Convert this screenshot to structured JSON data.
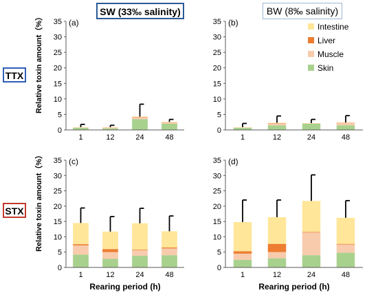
{
  "headers": {
    "sw": "SW (33‰ salinity)",
    "bw": "BW (8‰ salinity)",
    "ttx": "TTX",
    "stx": "STX"
  },
  "colors": {
    "Intestine": "#ffe699",
    "Liver": "#ed7d31",
    "Muscle": "#f8cbad",
    "Skin": "#a9d18e",
    "error_bar": "#000000",
    "cond_sw_border": "#2b5a97",
    "cond_bw_border": "#9fb6d3",
    "ttx_border": "#2f5eb5",
    "stx_border": "#c0392b"
  },
  "chart_data": [
    {
      "panel": "(a)",
      "type": "bar",
      "stacked": true,
      "categories": [
        "1",
        "12",
        "24",
        "48"
      ],
      "ylabel": "Relative toxin amount（%）",
      "xlabel": "",
      "ylim": [
        0,
        35
      ],
      "yticks": [
        0,
        5,
        10,
        15,
        20,
        25,
        30,
        35
      ],
      "series": [
        {
          "name": "Skin",
          "values": [
            0.7,
            0.5,
            3.5,
            2.0
          ]
        },
        {
          "name": "Muscle",
          "values": [
            0.1,
            0.3,
            0.6,
            0.4
          ]
        },
        {
          "name": "Liver",
          "values": [
            0.0,
            0.0,
            0.1,
            0.1
          ]
        },
        {
          "name": "Intestine",
          "values": [
            0.1,
            0.1,
            0.1,
            0.1
          ]
        }
      ],
      "error_top": [
        1.8,
        1.5,
        8.3,
        3.4
      ]
    },
    {
      "panel": "(b)",
      "type": "bar",
      "stacked": true,
      "categories": [
        "1",
        "12",
        "24",
        "48"
      ],
      "ylabel": "",
      "xlabel": "",
      "ylim": [
        0,
        35
      ],
      "yticks": [
        0,
        5,
        10,
        15,
        20,
        25,
        30,
        35
      ],
      "legend": {
        "entries": [
          "Intestine",
          "Liver",
          "Muscle",
          "Skin"
        ],
        "position": "top-right"
      },
      "series": [
        {
          "name": "Skin",
          "values": [
            0.7,
            1.5,
            2.0,
            1.5
          ]
        },
        {
          "name": "Muscle",
          "values": [
            0.1,
            0.6,
            0.1,
            0.7
          ]
        },
        {
          "name": "Liver",
          "values": [
            0.0,
            0.1,
            0.0,
            0.1
          ]
        },
        {
          "name": "Intestine",
          "values": [
            0.1,
            0.1,
            0.1,
            0.1
          ]
        }
      ],
      "error_top": [
        2.1,
        4.5,
        3.4,
        4.6
      ]
    },
    {
      "panel": "(c)",
      "type": "bar",
      "stacked": true,
      "categories": [
        "1",
        "12",
        "24",
        "48"
      ],
      "ylabel": "Relative toxin amount（%）",
      "xlabel": "Rearing period (h)",
      "ylim": [
        0,
        35
      ],
      "yticks": [
        0,
        5,
        10,
        15,
        20,
        25,
        30,
        35
      ],
      "series": [
        {
          "name": "Skin",
          "values": [
            4.2,
            2.8,
            3.8,
            4.0
          ]
        },
        {
          "name": "Muscle",
          "values": [
            3.0,
            2.2,
            1.8,
            2.2
          ]
        },
        {
          "name": "Liver",
          "values": [
            0.4,
            1.0,
            0.2,
            0.3
          ]
        },
        {
          "name": "Intestine",
          "values": [
            6.9,
            5.7,
            8.6,
            5.3
          ]
        }
      ],
      "error_top": [
        19.4,
        16.6,
        19.3,
        16.8
      ]
    },
    {
      "panel": "(d)",
      "type": "bar",
      "stacked": true,
      "categories": [
        "1",
        "12",
        "24",
        "48"
      ],
      "ylabel": "",
      "xlabel": "Rearing period (h)",
      "ylim": [
        0,
        35
      ],
      "yticks": [
        0,
        5,
        10,
        15,
        20,
        25,
        30,
        35
      ],
      "series": [
        {
          "name": "Skin",
          "values": [
            2.5,
            3.0,
            4.0,
            4.8
          ]
        },
        {
          "name": "Muscle",
          "values": [
            2.0,
            2.0,
            7.4,
            2.7
          ]
        },
        {
          "name": "Liver",
          "values": [
            0.8,
            2.7,
            0.2,
            0.2
          ]
        },
        {
          "name": "Intestine",
          "values": [
            9.5,
            8.7,
            10.1,
            8.5
          ]
        }
      ],
      "error_top": [
        22.0,
        22.0,
        30.2,
        21.8
      ]
    }
  ]
}
